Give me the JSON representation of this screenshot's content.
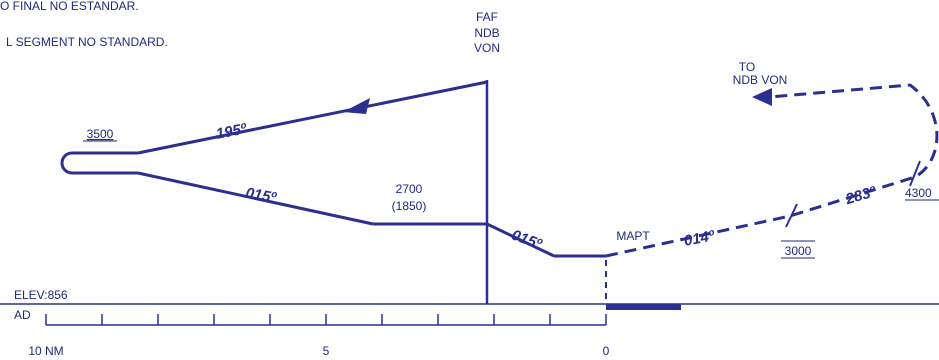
{
  "notes": {
    "line1": "O FINAL NO ESTANDAR.",
    "line2": "L SEGMENT NO STANDARD."
  },
  "faf": {
    "line1": "FAF",
    "line2": "NDB",
    "line3": "VON"
  },
  "to_ndb": {
    "line1": "TO",
    "line2": "NDB VON"
  },
  "altitudes": {
    "procedure_turn": "3500",
    "descent_alt": "2700",
    "descent_height": "(1850)",
    "missed_1": "3000",
    "missed_2": "4300"
  },
  "headings": {
    "outbound": "195º",
    "inbound": "015º",
    "final": "015º",
    "missed_1": "014º",
    "missed_2": "283º"
  },
  "mapt": "MAPT",
  "elevation": "ELEV:856",
  "aerodrome": "AD",
  "scale": {
    "left": "10 NM",
    "middle": "5",
    "right": "0"
  },
  "colors": {
    "route": "#2b2f8f",
    "text": "#1f2a7a",
    "ground": "#2b2f8f"
  }
}
